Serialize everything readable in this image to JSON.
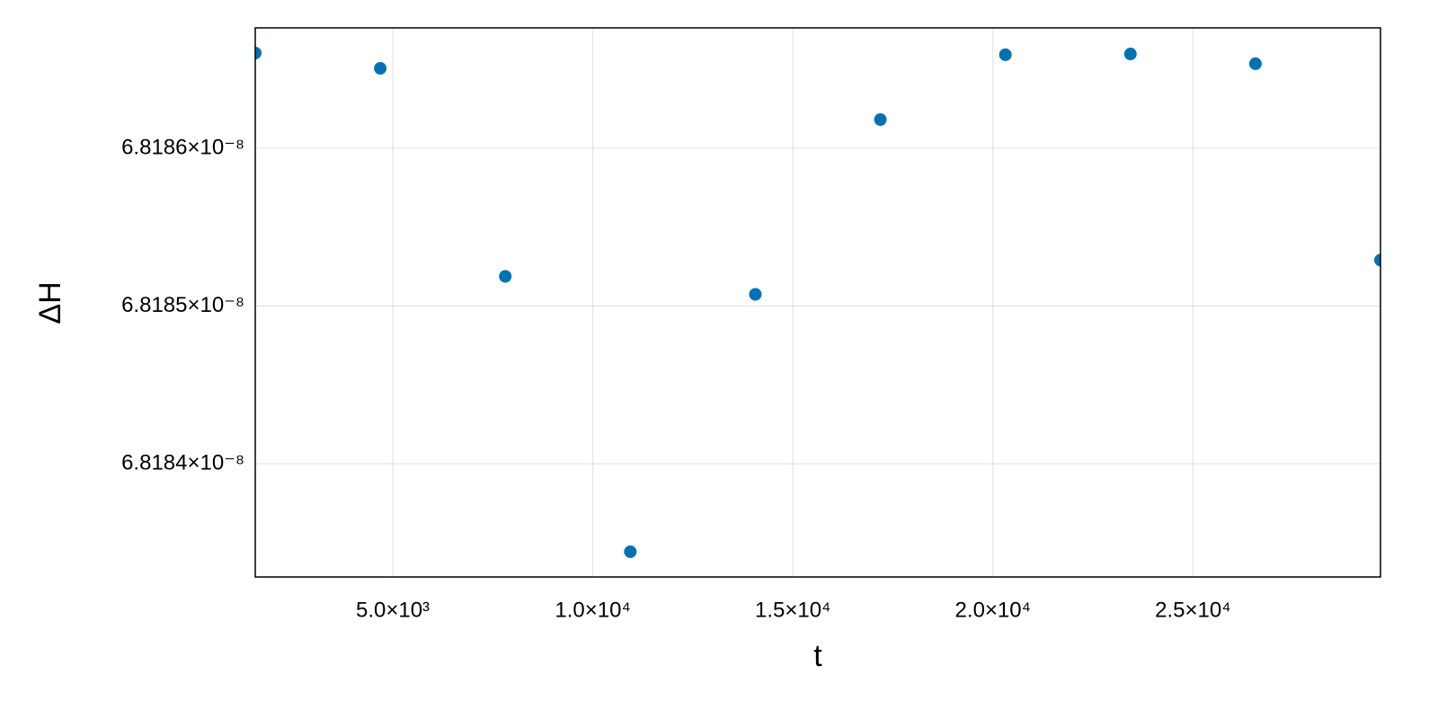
{
  "chart_data": {
    "type": "scatter",
    "x_label": "t",
    "y_label": "ΔH",
    "series": [
      {
        "name": "ΔH",
        "color": "#0072b2",
        "x": [
          1562.5,
          4687.5,
          7812.5,
          10937.5,
          14062.5,
          17187.5,
          20312.5,
          23437.5,
          26562.5,
          29687.5
        ],
        "values": [
          6.8186604e-08,
          6.8186507e-08,
          6.8185188e-08,
          6.8183442e-08,
          6.8185074e-08,
          6.8186182e-08,
          6.8186593e-08,
          6.8186598e-08,
          6.8186536e-08,
          6.8185291e-08
        ]
      }
    ],
    "xlim": [
      1562.5,
      29687.5
    ],
    "xticks": [
      {
        "value": 5000,
        "label": "5.0×10³"
      },
      {
        "value": 10000,
        "label": "1.0×10⁴"
      },
      {
        "value": 15000,
        "label": "1.5×10⁴"
      },
      {
        "value": 20000,
        "label": "2.0×10⁴"
      },
      {
        "value": 25000,
        "label": "2.5×10⁴"
      }
    ],
    "ylim": [
      6.8183282e-08,
      6.81867635e-08
    ],
    "yticks": [
      {
        "value": 6.8184e-08,
        "label": "6.8184×10⁻⁸"
      },
      {
        "value": 6.8185e-08,
        "label": "6.8185×10⁻⁸"
      },
      {
        "value": 6.8186e-08,
        "label": "6.8186×10⁻⁸"
      }
    ],
    "grid": true
  }
}
